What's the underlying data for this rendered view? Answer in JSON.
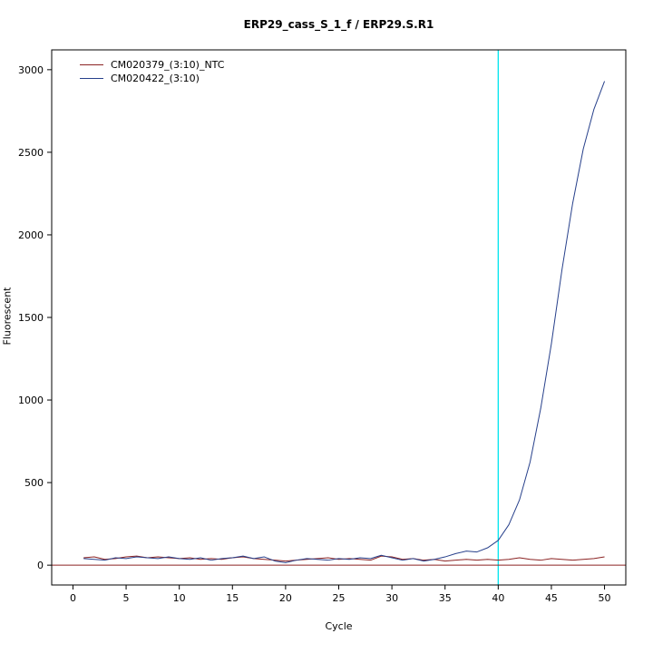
{
  "title": "ERP29_cass_S_1_f / ERP29.S.R1",
  "axes": {
    "x_label": "Cycle",
    "y_label": "Fluorescent"
  },
  "legend": [
    {
      "label": "CM020379_(3:10)_NTC",
      "color": "#8b2323"
    },
    {
      "label": "CM020422_(3:10)",
      "color": "#27408b"
    }
  ],
  "colors": {
    "box": "#000000",
    "tick_text": "#000000",
    "threshold_line": "#8b2323",
    "cutoff_line": "#00e5ee",
    "background": "#ffffff"
  },
  "chart_data": {
    "type": "line",
    "title": "ERP29_cass_S_1_f / ERP29.S.R1",
    "xlabel": "Cycle",
    "ylabel": "Fluorescent",
    "xlim": [
      0,
      50
    ],
    "ylim": [
      0,
      3000
    ],
    "x_ticks": [
      0,
      5,
      10,
      15,
      20,
      25,
      30,
      35,
      40,
      45,
      50
    ],
    "y_ticks": [
      0,
      500,
      1000,
      1500,
      2000,
      2500,
      3000
    ],
    "grid": false,
    "legend_position": "top-left",
    "vline_x": 40,
    "hline_y": 0,
    "x": [
      1,
      2,
      3,
      4,
      5,
      6,
      7,
      8,
      9,
      10,
      11,
      12,
      13,
      14,
      15,
      16,
      17,
      18,
      19,
      20,
      21,
      22,
      23,
      24,
      25,
      26,
      27,
      28,
      29,
      30,
      31,
      32,
      33,
      34,
      35,
      36,
      37,
      38,
      39,
      40,
      41,
      42,
      43,
      44,
      45,
      46,
      47,
      48,
      49,
      50
    ],
    "series": [
      {
        "name": "CM020379_(3:10)_NTC",
        "color": "#8b2323",
        "values": [
          45,
          50,
          35,
          40,
          50,
          55,
          45,
          50,
          45,
          40,
          45,
          35,
          40,
          35,
          45,
          50,
          40,
          35,
          30,
          25,
          30,
          35,
          40,
          45,
          35,
          40,
          35,
          30,
          55,
          50,
          35,
          40,
          30,
          35,
          25,
          30,
          35,
          30,
          35,
          30,
          35,
          45,
          35,
          30,
          40,
          35,
          30,
          35,
          40,
          50
        ]
      },
      {
        "name": "CM020422_(3:10)",
        "color": "#27408b",
        "values": [
          40,
          35,
          30,
          45,
          40,
          50,
          45,
          40,
          50,
          40,
          35,
          45,
          30,
          40,
          45,
          55,
          40,
          50,
          25,
          15,
          30,
          40,
          35,
          30,
          40,
          35,
          45,
          40,
          60,
          45,
          30,
          40,
          25,
          35,
          50,
          70,
          85,
          80,
          105,
          150,
          245,
          395,
          625,
          950,
          1340,
          1790,
          2190,
          2520,
          2760,
          2930
        ]
      }
    ]
  }
}
